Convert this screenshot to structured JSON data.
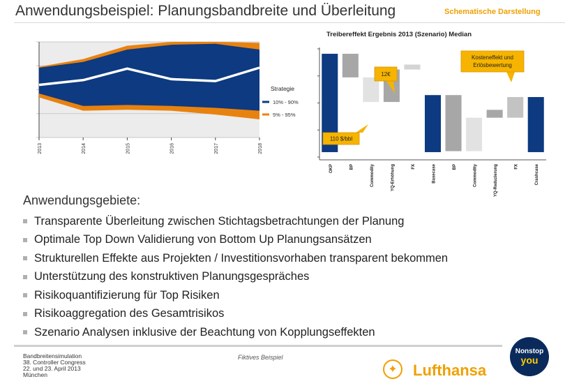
{
  "header": {
    "title": "Anwendungsbeispiel: Planungsbandbreite und Überleitung",
    "tag": "Schematische Darstellung"
  },
  "chart_data": [
    {
      "type": "area",
      "title": "",
      "x": [
        "2013",
        "2014",
        "2015",
        "2016",
        "2017",
        "2018"
      ],
      "ylim": [
        0,
        100
      ],
      "grid": true,
      "legend_title": "Strategie",
      "legend_position": "right",
      "series": [
        {
          "name": "5% - 95%",
          "kind": "band",
          "color": "#e8820f",
          "lower": [
            42,
            28,
            29,
            28,
            24,
            19
          ],
          "upper": [
            74,
            82,
            96,
            100,
            100,
            99
          ]
        },
        {
          "name": "10% - 90%",
          "kind": "band",
          "color": "#0d3a80",
          "lower": [
            46,
            33,
            34,
            33,
            31,
            28
          ],
          "upper": [
            73,
            79,
            92,
            97,
            98,
            92
          ]
        },
        {
          "name": "Median",
          "kind": "line",
          "color": "#ffffff",
          "values": [
            55,
            60,
            72,
            61,
            59,
            73
          ]
        }
      ]
    },
    {
      "type": "bar",
      "subtype": "waterfall",
      "title": "Treibereffekt Ergebnis 2013 (Szenario) Median",
      "categories": [
        "OKP",
        "BP",
        "Commodity",
        "YQ-Erhöhung",
        "FX",
        "Basecase",
        "BP",
        "Commodity",
        "YQ-Reduzierung",
        "FX",
        "Crashcase"
      ],
      "ylim": [
        -5,
        105
      ],
      "bars": [
        {
          "start": 0,
          "end": 100,
          "kind": "total"
        },
        {
          "start": 100,
          "end": 76,
          "kind": "delta"
        },
        {
          "start": 76,
          "end": 51,
          "kind": "delta"
        },
        {
          "start": 51,
          "end": 84,
          "kind": "delta"
        },
        {
          "start": 84,
          "end": 89,
          "kind": "delta"
        },
        {
          "start": 0,
          "end": 58,
          "kind": "total"
        },
        {
          "start": 58,
          "end": 1,
          "kind": "delta"
        },
        {
          "start": 1,
          "end": 35,
          "kind": "delta"
        },
        {
          "start": 35,
          "end": 43,
          "kind": "delta"
        },
        {
          "start": 35,
          "end": 56,
          "kind": "delta"
        },
        {
          "start": 0,
          "end": 56,
          "kind": "total"
        }
      ],
      "colors": {
        "total": "#0d3a80",
        "delta_dark": "#a7a7a7",
        "delta_light": "#e2e2e2"
      },
      "annotations": [
        {
          "text": "110 $/bbl",
          "bar_index": 2
        },
        {
          "text": "12€",
          "bar_index": 3
        },
        {
          "text": "Kosteneffekt und Erlösbewertung",
          "bar_index": 9
        }
      ]
    }
  ],
  "content": {
    "heading": "Anwendungsgebiete:",
    "bullets": [
      "Transparente Überleitung zwischen Stichtagsbetrachtungen der Planung",
      "Optimale Top Down Validierung von Bottom Up Planungsansätzen",
      "Strukturellen Effekte aus Projekten / Investitionsvorhaben transparent bekommen",
      "Unterstützung des konstruktiven Planungsgespräches",
      "Risikoquantifizierung für Top Risiken",
      "Risikoaggregation des Gesamtrisikos",
      "Szenario Analysen inklusive der Beachtung von Kopplungseffekten"
    ]
  },
  "footer": {
    "lines": [
      "Bandbreitensimulation",
      "38. Controller Congress",
      "22. und 23. April 2013",
      "München"
    ],
    "center": "Fiktives Beispiel",
    "logo_text": "Lufthansa",
    "badge": {
      "line1": "Nonstop",
      "line2": "you"
    }
  },
  "colors": {
    "accent": "#f0a000",
    "navy": "#0d3a80",
    "orange": "#e8820f"
  }
}
